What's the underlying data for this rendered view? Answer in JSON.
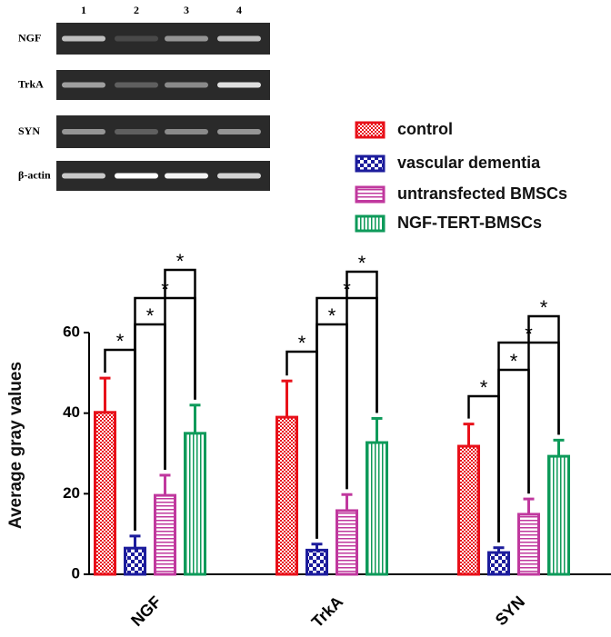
{
  "gel": {
    "lanes": [
      "1",
      "2",
      "3",
      "4"
    ],
    "rows": [
      "NGF",
      "TrkA",
      "SYN",
      "β-actin"
    ]
  },
  "chart_data": {
    "type": "bar",
    "y_label": "Average gray values",
    "categories": [
      "NGF",
      "TrkA",
      "SYN"
    ],
    "series": [
      {
        "name": "control",
        "color": "#e8111a",
        "values": [
          40.2,
          39,
          31.8
        ],
        "errors": [
          8.5,
          9,
          5.5
        ]
      },
      {
        "name": "vascular dementia",
        "color": "#1c1c9c",
        "values": [
          6.5,
          6,
          5.4
        ],
        "errors": [
          3,
          1.5,
          1.2
        ]
      },
      {
        "name": "untransfected BMSCs",
        "color": "#c0389e",
        "values": [
          19.6,
          15.8,
          14.9
        ],
        "errors": [
          5,
          4,
          3.8
        ]
      },
      {
        "name": "NGF-TERT-BMSCs",
        "color": "#0e9a5a",
        "values": [
          35,
          32.7,
          29.3
        ],
        "errors": [
          7,
          6,
          4
        ]
      }
    ],
    "ylim": [
      0,
      60
    ],
    "yticks": [
      0,
      20,
      40,
      60
    ],
    "significance_marker": "*"
  }
}
